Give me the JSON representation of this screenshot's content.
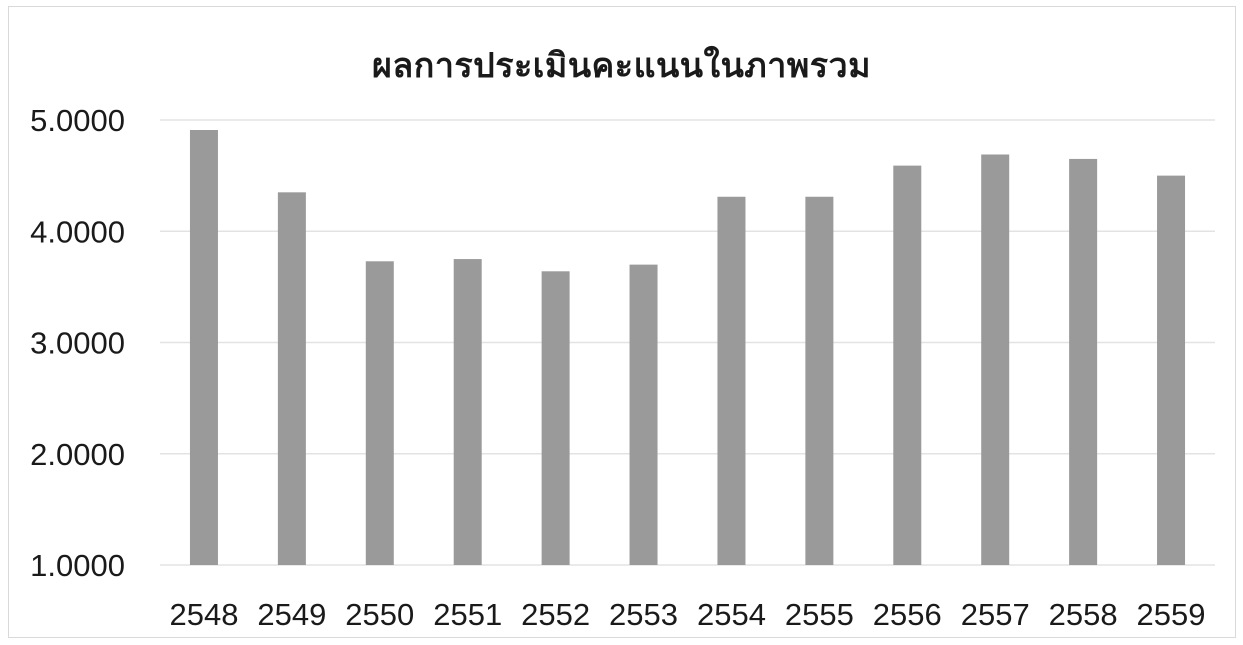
{
  "chart_data": {
    "type": "bar",
    "title": "ผลการประเมินคะแนนในภาพรวม",
    "xlabel": "",
    "ylabel": "",
    "categories": [
      "2548",
      "2549",
      "2550",
      "2551",
      "2552",
      "2553",
      "2554",
      "2555",
      "2556",
      "2557",
      "2558",
      "2559"
    ],
    "values": [
      4.91,
      4.35,
      3.73,
      3.75,
      3.64,
      3.7,
      4.31,
      4.31,
      4.59,
      4.69,
      4.65,
      4.5
    ],
    "ylim": [
      1,
      5
    ],
    "yticks": [
      "1.0000",
      "2.0000",
      "3.0000",
      "4.0000",
      "5.0000"
    ],
    "ytick_values": [
      1,
      2,
      3,
      4,
      5
    ],
    "grid": true,
    "legend": "none",
    "bar_color": "#9a9a9a",
    "grid_color": "#e3e3e3"
  }
}
